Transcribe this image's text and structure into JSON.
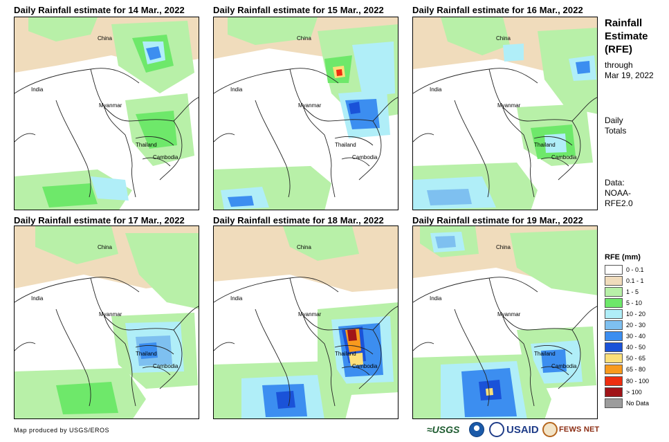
{
  "panels": [
    {
      "title": "Daily Rainfall estimate for 14 Mar., 2022",
      "labels": [
        "China",
        "India",
        "Myanmar",
        "Thailand",
        "Cambodia"
      ]
    },
    {
      "title": "Daily Rainfall estimate for 15 Mar., 2022",
      "labels": [
        "China",
        "India",
        "Myanmar",
        "Thailand",
        "Cambodia"
      ]
    },
    {
      "title": "Daily Rainfall estimate for 16 Mar., 2022",
      "labels": [
        "China",
        "India",
        "Myanmar",
        "Thailand",
        "Cambodia"
      ]
    },
    {
      "title": "Daily Rainfall estimate for 17 Mar., 2022",
      "labels": [
        "China",
        "India",
        "Myanmar",
        "Thailand",
        "Cambodia"
      ]
    },
    {
      "title": "Daily Rainfall estimate for 18 Mar., 2022",
      "labels": [
        "China",
        "India",
        "Myanmar",
        "Thailand",
        "Cambodia"
      ]
    },
    {
      "title": "Daily Rainfall estimate for 19 Mar., 2022",
      "labels": [
        "China",
        "India",
        "Myanmar",
        "Thailand",
        "Cambodia"
      ]
    }
  ],
  "sidebar": {
    "title_lines": [
      "Rainfall",
      "Estimate",
      "(RFE)"
    ],
    "through_lines": [
      "through",
      "Mar 19, 2022"
    ],
    "daily_lines": [
      "Daily",
      "Totals"
    ],
    "data_lines": [
      "Data:",
      "NOAA-",
      "RFE2.0"
    ]
  },
  "legend": {
    "title": "RFE (mm)",
    "items": [
      {
        "label": "0 - 0.1",
        "color": "#ffffff"
      },
      {
        "label": "0.1 - 1",
        "color": "#f0dcbc"
      },
      {
        "label": "1 - 5",
        "color": "#b8f0a8"
      },
      {
        "label": "5 - 10",
        "color": "#6ee86a"
      },
      {
        "label": "10 - 20",
        "color": "#b0eef8"
      },
      {
        "label": "20 - 30",
        "color": "#7ec0f0"
      },
      {
        "label": "30 - 40",
        "color": "#3c8ef0"
      },
      {
        "label": "40 - 50",
        "color": "#1a52d8"
      },
      {
        "label": "50 - 65",
        "color": "#fce07a"
      },
      {
        "label": "65 - 80",
        "color": "#f89a1e"
      },
      {
        "label": "80 - 100",
        "color": "#ee2e10"
      },
      {
        "label": "> 100",
        "color": "#a01418"
      },
      {
        "label": "No Data",
        "color": "#9c9c9c"
      }
    ]
  },
  "footer": {
    "credit": "Map produced by USGS/EROS",
    "usgs_logo": "≈USGS",
    "usaid_logo": "USAID",
    "fews_logo": "FEWS NET"
  },
  "icons": {
    "usgs": "usgs-logo-icon",
    "noaa": "noaa-logo-icon",
    "usaid": "usaid-seal-icon",
    "fews": "fews-net-seal-icon"
  }
}
